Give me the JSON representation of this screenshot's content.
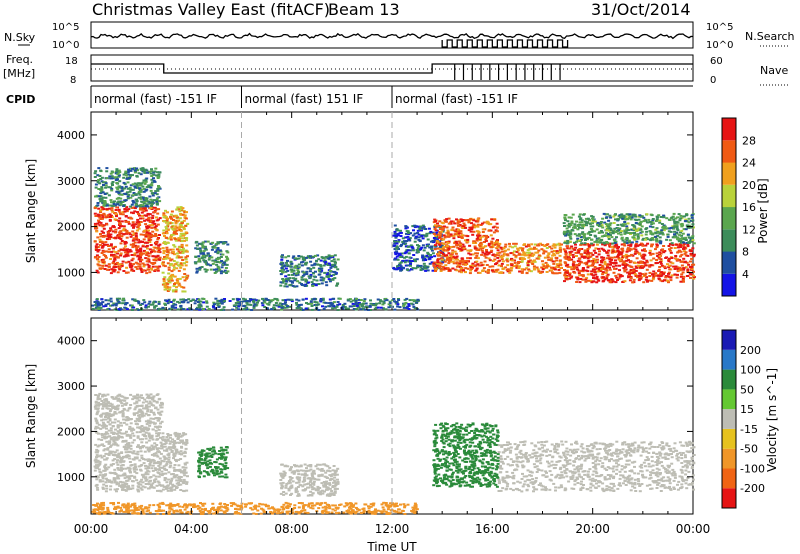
{
  "header": {
    "station": "Christmas Valley East (fitACF)",
    "beam": "Beam 13",
    "date": "31/Oct/2014"
  },
  "strip_labels": {
    "nsky": "N.Sky",
    "nsky_tick_hi": "10^5",
    "nsky_tick_lo": "10^0",
    "nsearch": "N.Search",
    "nsearch_tick_hi": "10^5",
    "nsearch_tick_lo": "10^0",
    "freq": "Freq.",
    "freq_unit": "[MHz]",
    "freq_tick_hi": "18",
    "freq_tick_lo": "8",
    "nave": "Nave",
    "nave_tick_hi": "60",
    "nave_tick_lo": "0",
    "cpid": "CPID"
  },
  "cpid_segments": [
    {
      "label": "normal (fast) -151 IF",
      "start_hour": 0,
      "end_hour": 6
    },
    {
      "label": "normal (fast) 151 IF",
      "start_hour": 6,
      "end_hour": 12
    },
    {
      "label": "normal (fast) -151 IF",
      "start_hour": 12,
      "end_hour": 24
    }
  ],
  "colors": {
    "background": "#ffffff",
    "ground_scatter": "#bdbdb4",
    "power_scale": [
      "#1414e6",
      "#1f4fa0",
      "#3c8c5a",
      "#5aa64e",
      "#b9d23a",
      "#f0a01e",
      "#f05a14",
      "#e61414"
    ],
    "velocity_scale": [
      "#1a1ab4",
      "#2878c8",
      "#2a8a3a",
      "#64c832",
      "#bdbdb4",
      "#e6c21e",
      "#f09628",
      "#f06414",
      "#e61414"
    ]
  },
  "chart_data": [
    {
      "type": "heatmap",
      "name": "power",
      "xlabel": "",
      "ylabel": "Slant Range [km]",
      "xlim": [
        0,
        24
      ],
      "ylim": [
        180,
        4500
      ],
      "yticks": [
        1000,
        2000,
        3000,
        4000
      ],
      "yticklabels": [
        "1000",
        "2000",
        "3000",
        "4000"
      ],
      "colorbar": {
        "label": "Power [dB]",
        "range": [
          0,
          32
        ],
        "ticks": [
          "4",
          "8",
          "12",
          "16",
          "20",
          "24",
          "28"
        ]
      },
      "regions": [
        {
          "x": [
            0.1,
            2.7
          ],
          "y": [
            1000,
            2450
          ],
          "level": 28
        },
        {
          "x": [
            0.1,
            2.7
          ],
          "y": [
            2450,
            3300
          ],
          "level": 10
        },
        {
          "x": [
            2.8,
            3.8
          ],
          "y": [
            600,
            2450
          ],
          "level": 22
        },
        {
          "x": [
            4.1,
            5.4
          ],
          "y": [
            1000,
            1700
          ],
          "level": 10
        },
        {
          "x": [
            7.5,
            9.8
          ],
          "y": [
            700,
            1400
          ],
          "level": 8
        },
        {
          "x": [
            12.0,
            14.0
          ],
          "y": [
            1050,
            2050
          ],
          "level": 6
        },
        {
          "x": [
            13.6,
            16.2
          ],
          "y": [
            1000,
            2200
          ],
          "level": 26
        },
        {
          "x": [
            16.2,
            18.7
          ],
          "y": [
            1000,
            1650
          ],
          "level": 24
        },
        {
          "x": [
            18.8,
            24.0
          ],
          "y": [
            800,
            1650
          ],
          "level": 28
        },
        {
          "x": [
            18.8,
            24.0
          ],
          "y": [
            1650,
            2300
          ],
          "level": 12
        },
        {
          "x": [
            0.0,
            13.0
          ],
          "y": [
            200,
            450
          ],
          "level": 8
        }
      ]
    },
    {
      "type": "heatmap",
      "name": "velocity",
      "xlabel": "Time UT",
      "ylabel": "Slant Range [km]",
      "xlim": [
        0,
        24
      ],
      "ylim": [
        180,
        4500
      ],
      "yticks": [
        1000,
        2000,
        3000,
        4000
      ],
      "yticklabels": [
        "1000",
        "2000",
        "3000",
        "4000"
      ],
      "xticks": [
        0,
        4,
        8,
        12,
        16,
        20,
        24
      ],
      "xticklabels": [
        "00:00",
        "04:00",
        "08:00",
        "12:00",
        "16:00",
        "20:00",
        "00:00"
      ],
      "colorbar": {
        "label": "Velocity [m s^-1]",
        "ticks": [
          "200",
          "100",
          "50",
          "15",
          "-15",
          "-50",
          "-100",
          "-200"
        ]
      },
      "regions": [
        {
          "x": [
            0.1,
            2.8
          ],
          "y": [
            700,
            2850
          ],
          "value": 0
        },
        {
          "x": [
            2.8,
            3.8
          ],
          "y": [
            700,
            2000
          ],
          "value": 0
        },
        {
          "x": [
            4.2,
            5.4
          ],
          "y": [
            1000,
            1700
          ],
          "value": 60
        },
        {
          "x": [
            7.5,
            9.8
          ],
          "y": [
            600,
            1300
          ],
          "value": 0
        },
        {
          "x": [
            13.6,
            16.2
          ],
          "y": [
            800,
            2200
          ],
          "value": 60
        },
        {
          "x": [
            16.2,
            24.0
          ],
          "y": [
            700,
            1800
          ],
          "value": 0
        },
        {
          "x": [
            0.0,
            13.0
          ],
          "y": [
            200,
            450
          ],
          "value": -40
        }
      ]
    }
  ]
}
